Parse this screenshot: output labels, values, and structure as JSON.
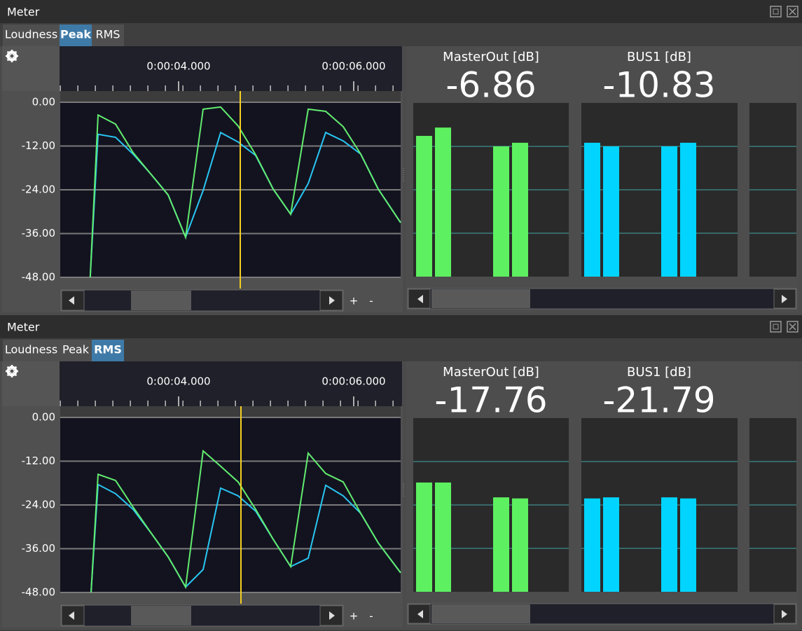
{
  "panels": [
    {
      "title": "Meter",
      "tabs": [
        "Loudness",
        "Peak",
        "RMS"
      ],
      "active_tab": 1,
      "zoom_in": "+",
      "zoom_out": "-",
      "graph": {
        "type": "line",
        "xlim": [
          2.656,
          6.536
        ],
        "ylim": [
          -48,
          0
        ],
        "xticks": [
          {
            "value": 4,
            "label": "0:00:04.000"
          },
          {
            "value": 6,
            "label": "0:00:06.000"
          }
        ],
        "yticks": [
          {
            "value": 0,
            "label": "0.00"
          },
          {
            "value": -12,
            "label": "-12.00"
          },
          {
            "value": -24,
            "label": "-24.00"
          },
          {
            "value": -36,
            "label": "-36.00"
          },
          {
            "value": -48,
            "label": "-48.00"
          }
        ],
        "cursor": 4.704,
        "x": [
          2.99,
          3.08,
          3.28,
          3.48,
          3.68,
          3.88,
          4.08,
          4.28,
          4.48,
          4.68,
          4.88,
          5.08,
          5.28,
          5.48,
          5.68,
          5.88,
          6.08,
          6.28,
          6.536
        ],
        "series": [
          {
            "color": "#29c6f2",
            "values": [
              -48,
              -8.8,
              -9.6,
              -14.2,
              -19.6,
              -25.4,
              -37,
              -24.2,
              -8.3,
              -10.9,
              -14.6,
              -23.8,
              -30.7,
              -22.3,
              -8.3,
              -10.6,
              -14.2,
              -23.8,
              -33
            ]
          },
          {
            "color": "#62ec6e",
            "values": [
              -48,
              -3.5,
              -6,
              -13.8,
              -19.6,
              -25.4,
              -37,
              -1.9,
              -1.3,
              -6.5,
              -14.4,
              -23.8,
              -30.7,
              -1.9,
              -2.5,
              -6.7,
              -14.2,
              -23.8,
              -33
            ]
          }
        ]
      },
      "meters": [
        {
          "name": "MasterOut [dB]",
          "value": -6.86,
          "color": "#5df060",
          "bars": [
            -9.1,
            -6.8,
            -12,
            -11
          ]
        },
        {
          "name": "BUS1 [dB]",
          "value": -10.83,
          "color": "#00d4ff",
          "bars": [
            -11,
            -12,
            -12,
            -11
          ]
        }
      ]
    },
    {
      "title": "Meter",
      "tabs": [
        "Loudness",
        "Peak",
        "RMS"
      ],
      "active_tab": 2,
      "zoom_in": "+",
      "zoom_out": "-",
      "graph": {
        "type": "line",
        "xlim": [
          2.656,
          6.536
        ],
        "ylim": [
          -48,
          0
        ],
        "xticks": [
          {
            "value": 4,
            "label": "0:00:04.000"
          },
          {
            "value": 6,
            "label": "0:00:06.000"
          }
        ],
        "yticks": [
          {
            "value": 0,
            "label": "0.00"
          },
          {
            "value": -12,
            "label": "-12.00"
          },
          {
            "value": -24,
            "label": "-24.00"
          },
          {
            "value": -36,
            "label": "-36.00"
          },
          {
            "value": -48,
            "label": "-48.00"
          }
        ],
        "cursor": 4.712,
        "x": [
          3.0,
          3.08,
          3.28,
          3.48,
          3.68,
          3.88,
          4.08,
          4.28,
          4.48,
          4.68,
          4.88,
          5.08,
          5.28,
          5.48,
          5.68,
          5.88,
          6.08,
          6.28,
          6.536
        ],
        "series": [
          {
            "color": "#29c6f2",
            "values": [
              -48,
              -18.4,
              -20.9,
              -25.2,
              -31.5,
              -38.2,
              -46.5,
              -41.7,
              -19.4,
              -21.5,
              -25.7,
              -33.4,
              -40.9,
              -38.6,
              -18.6,
              -21.5,
              -26.3,
              -34.4,
              -42.6
            ]
          },
          {
            "color": "#62ec6e",
            "values": [
              -48,
              -15.6,
              -17.3,
              -24.6,
              -31.5,
              -38.2,
              -46.5,
              -9.2,
              -13.4,
              -17.7,
              -25.2,
              -33.4,
              -40.9,
              -9.8,
              -15.4,
              -17.7,
              -26.3,
              -34.4,
              -42.6
            ]
          }
        ]
      },
      "meters": [
        {
          "name": "MasterOut [dB]",
          "value": -17.76,
          "color": "#5df060",
          "bars": [
            -17.8,
            -17.8,
            -21.9,
            -22.2
          ]
        },
        {
          "name": "BUS1 [dB]",
          "value": -21.79,
          "color": "#00d4ff",
          "bars": [
            -22.2,
            -21.9,
            -21.9,
            -22.2
          ]
        }
      ]
    }
  ]
}
